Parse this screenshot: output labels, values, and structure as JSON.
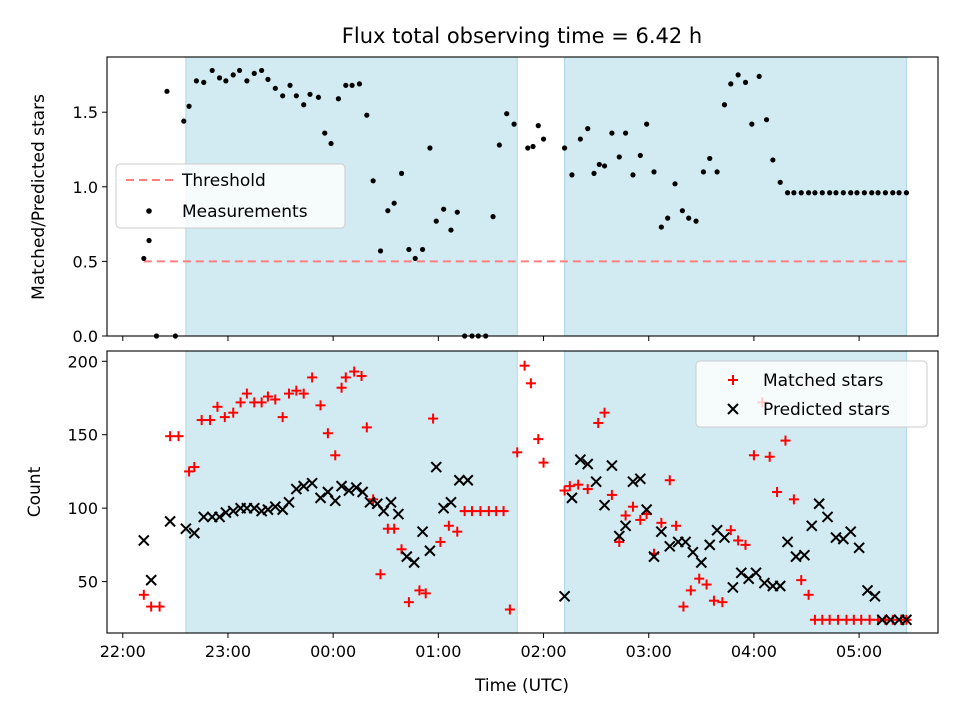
{
  "title": "Flux total observing time = 6.42 h",
  "xlabel": "Time (UTC)",
  "x_ticks": [
    "22:00",
    "23:00",
    "00:00",
    "01:00",
    "02:00",
    "03:00",
    "04:00",
    "05:00"
  ],
  "colors": {
    "shade": "#add8e6",
    "threshold": "#ff7f7f",
    "measurements": "#000000",
    "matched": "#ff0000",
    "predicted": "#000000"
  },
  "chart_data": [
    {
      "type": "scatter",
      "ylabel": "Matched/Predicted stars",
      "x_units": "hours since 22:00 UTC",
      "xlim": [
        -0.15,
        7.75
      ],
      "ylim": [
        0,
        1.87
      ],
      "y_ticks": [
        "0.0",
        "0.5",
        "1.0",
        "1.5"
      ],
      "y_tick_values": [
        0,
        0.5,
        1.0,
        1.5
      ],
      "shaded_ranges": [
        [
          0.6,
          3.75
        ],
        [
          4.2,
          7.45
        ]
      ],
      "legend_placement": "center-left",
      "threshold": {
        "name": "Threshold",
        "y": 0.5,
        "x_range": [
          0.2,
          7.45
        ]
      },
      "series": [
        {
          "name": "Measurements",
          "x": [
            0.2,
            0.25,
            0.32,
            0.42,
            0.5,
            0.58,
            0.63,
            0.7,
            0.77,
            0.85,
            0.92,
            0.98,
            1.05,
            1.11,
            1.18,
            1.25,
            1.32,
            1.38,
            1.45,
            1.52,
            1.59,
            1.65,
            1.72,
            1.78,
            1.86,
            1.92,
            1.98,
            2.05,
            2.12,
            2.18,
            2.25,
            2.32,
            2.38,
            2.45,
            2.52,
            2.58,
            2.65,
            2.72,
            2.78,
            2.85,
            2.92,
            2.98,
            3.05,
            3.12,
            3.18,
            3.25,
            3.32,
            3.38,
            3.45,
            3.52,
            3.58,
            3.65,
            3.72,
            3.85,
            3.9,
            3.95,
            4.0,
            4.2,
            4.27,
            4.35,
            4.42,
            4.48,
            4.53,
            4.58,
            4.65,
            4.72,
            4.78,
            4.85,
            4.92,
            4.98,
            5.05,
            5.12,
            5.18,
            5.25,
            5.32,
            5.38,
            5.45,
            5.52,
            5.58,
            5.65,
            5.72,
            5.78,
            5.85,
            5.92,
            5.98,
            6.05,
            6.12,
            6.18,
            6.25,
            6.32,
            6.38,
            6.45,
            6.52,
            6.58,
            6.65,
            6.72,
            6.78,
            6.85,
            6.92,
            6.98,
            7.05,
            7.12,
            7.18,
            7.25,
            7.32,
            7.38,
            7.45
          ],
          "y": [
            0.52,
            0.64,
            0,
            1.64,
            0,
            1.44,
            1.54,
            1.71,
            1.7,
            1.78,
            1.73,
            1.71,
            1.75,
            1.78,
            1.71,
            1.76,
            1.78,
            1.72,
            1.66,
            1.61,
            1.68,
            1.61,
            1.55,
            1.62,
            1.6,
            1.36,
            1.29,
            1.59,
            1.68,
            1.68,
            1.69,
            1.48,
            1.04,
            0.57,
            0.84,
            0.89,
            1.09,
            0.58,
            0.52,
            0.58,
            1.26,
            0.77,
            0.85,
            0.71,
            0.83,
            0,
            0,
            0,
            0,
            0.8,
            1.28,
            1.49,
            1.42,
            1.26,
            1.27,
            1.41,
            1.32,
            1.26,
            1.08,
            1.32,
            1.39,
            1.09,
            1.15,
            1.14,
            1.36,
            1.2,
            1.36,
            1.08,
            1.21,
            1.42,
            1.1,
            0.73,
            0.79,
            1.02,
            0.84,
            0.79,
            0.77,
            1.1,
            1.19,
            1.1,
            1.55,
            1.69,
            1.75,
            1.7,
            1.42,
            1.74,
            1.45,
            1.18,
            1.03,
            0.96,
            0.96,
            0.96,
            0.96,
            0.96,
            0.96,
            0.96,
            0.96,
            0.96,
            0.96,
            0.96,
            0.96,
            0.96,
            0.96,
            0.96,
            0.96,
            0.96,
            0.96
          ]
        }
      ]
    },
    {
      "type": "scatter",
      "ylabel": "Count",
      "x_units": "hours since 22:00 UTC",
      "xlim": [
        -0.15,
        7.75
      ],
      "ylim": [
        15,
        207
      ],
      "y_ticks": [
        "50",
        "100",
        "150",
        "200"
      ],
      "y_tick_values": [
        50,
        100,
        150,
        200
      ],
      "shaded_ranges": [
        [
          0.6,
          3.75
        ],
        [
          4.2,
          7.45
        ]
      ],
      "legend_placement": "upper right",
      "series": [
        {
          "name": "Matched stars",
          "x": [
            0.2,
            0.27,
            0.35,
            0.45,
            0.53,
            0.63,
            0.68,
            0.75,
            0.83,
            0.9,
            0.97,
            1.05,
            1.12,
            1.18,
            1.25,
            1.32,
            1.38,
            1.45,
            1.52,
            1.58,
            1.65,
            1.72,
            1.8,
            1.88,
            1.95,
            2.02,
            2.08,
            2.12,
            2.2,
            2.27,
            2.32,
            2.38,
            2.45,
            2.52,
            2.58,
            2.65,
            2.72,
            2.82,
            2.88,
            2.95,
            3.02,
            3.1,
            3.18,
            3.25,
            3.32,
            3.4,
            3.48,
            3.55,
            3.62,
            3.68,
            3.75,
            3.82,
            3.88,
            3.95,
            4.0,
            4.2,
            4.25,
            4.33,
            4.42,
            4.52,
            4.58,
            4.65,
            4.72,
            4.78,
            4.85,
            4.92,
            4.98,
            5.05,
            5.12,
            5.2,
            5.26,
            5.33,
            5.4,
            5.48,
            5.55,
            5.62,
            5.7,
            5.78,
            5.85,
            5.92,
            6.0,
            6.08,
            6.15,
            6.22,
            6.3,
            6.38,
            6.45,
            6.52,
            6.58,
            6.65,
            6.72,
            6.8,
            6.88,
            6.95,
            7.02,
            7.1,
            7.18,
            7.25,
            7.32,
            7.4,
            7.45
          ],
          "y": [
            41,
            33,
            33,
            149,
            149,
            125,
            128,
            160,
            160,
            169,
            162,
            165,
            172,
            178,
            172,
            172,
            176,
            174,
            162,
            178,
            180,
            178,
            189,
            170,
            151,
            136,
            182,
            189,
            193,
            190,
            155,
            106,
            55,
            86,
            86,
            72,
            36,
            44,
            42,
            161,
            77,
            88,
            84,
            98,
            98,
            98,
            98,
            98,
            98,
            31,
            138,
            197,
            185,
            147,
            131,
            112,
            115,
            116,
            113,
            158,
            165,
            109,
            77,
            95,
            101,
            92,
            96,
            69,
            90,
            119,
            88,
            33,
            44,
            52,
            48,
            37,
            36,
            85,
            78,
            75,
            136,
            172,
            135,
            111,
            146,
            106,
            51,
            41,
            24,
            24,
            24,
            24,
            24,
            24,
            24,
            24,
            24,
            24,
            24,
            24,
            24
          ]
        },
        {
          "name": "Predicted stars",
          "x": [
            0.2,
            0.27,
            0.45,
            0.6,
            0.68,
            0.77,
            0.85,
            0.92,
            0.98,
            1.05,
            1.12,
            1.18,
            1.25,
            1.32,
            1.38,
            1.45,
            1.52,
            1.58,
            1.65,
            1.72,
            1.8,
            1.88,
            1.95,
            2.02,
            2.08,
            2.15,
            2.22,
            2.28,
            2.35,
            2.42,
            2.48,
            2.55,
            2.62,
            2.7,
            2.77,
            2.85,
            2.92,
            2.98,
            3.05,
            3.12,
            3.2,
            3.28,
            4.2,
            4.27,
            4.35,
            4.42,
            4.5,
            4.58,
            4.65,
            4.72,
            4.78,
            4.85,
            4.92,
            4.98,
            5.05,
            5.12,
            5.2,
            5.28,
            5.35,
            5.42,
            5.5,
            5.58,
            5.65,
            5.72,
            5.8,
            5.88,
            5.95,
            6.02,
            6.1,
            6.18,
            6.25,
            6.32,
            6.4,
            6.48,
            6.55,
            6.62,
            6.7,
            6.78,
            6.85,
            6.92,
            7.0,
            7.08,
            7.15,
            7.22,
            7.3,
            7.38,
            7.45
          ],
          "y": [
            78,
            51,
            91,
            86,
            83,
            94,
            94,
            94,
            97,
            98,
            100,
            100,
            100,
            98,
            99,
            101,
            99,
            104,
            113,
            115,
            117,
            107,
            111,
            105,
            115,
            112,
            114,
            111,
            104,
            103,
            98,
            104,
            96,
            67,
            63,
            84,
            71,
            128,
            100,
            104,
            119,
            119,
            40,
            107,
            133,
            130,
            118,
            102,
            129,
            81,
            88,
            118,
            120,
            99,
            67,
            84,
            74,
            77,
            77,
            70,
            63,
            75,
            85,
            80,
            46,
            56,
            52,
            56,
            49,
            47,
            47,
            77,
            67,
            68,
            88,
            103,
            94,
            80,
            79,
            84,
            73,
            44,
            40,
            24,
            24,
            24,
            24
          ]
        }
      ]
    }
  ]
}
